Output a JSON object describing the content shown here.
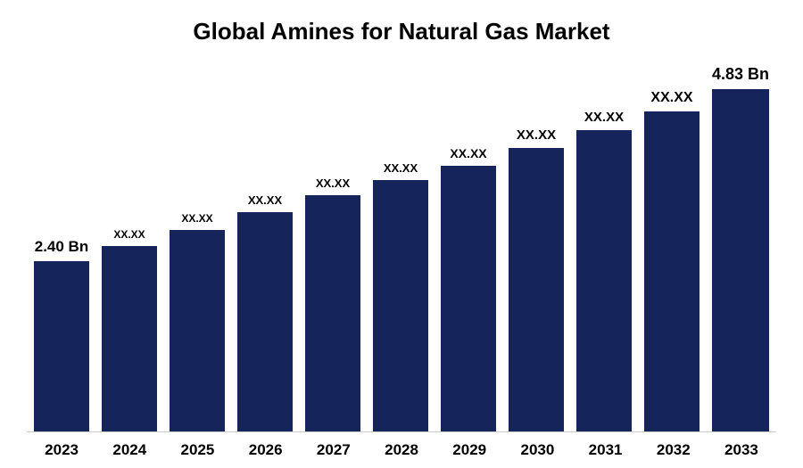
{
  "chart": {
    "type": "bar",
    "title": "Global Amines for Natural Gas Market",
    "title_fontsize": 26,
    "title_color": "#000000",
    "bar_color": "#15245b",
    "background_color": "#ffffff",
    "axis_line_color": "#cccccc",
    "x_tick_fontsize": 17,
    "x_tick_fontweight": "700",
    "x_tick_color": "#000000",
    "value_label_color": "#000000",
    "value_label_fontweight": "700",
    "ylim": [
      0,
      5.2
    ],
    "bars": [
      {
        "year": "2023",
        "value": 2.4,
        "label": "2.40 Bn",
        "label_fontsize": 17
      },
      {
        "year": "2024",
        "value": 2.62,
        "label": "XX.XX",
        "label_fontsize": 12
      },
      {
        "year": "2025",
        "value": 2.84,
        "label": "XX.XX",
        "label_fontsize": 12
      },
      {
        "year": "2026",
        "value": 3.1,
        "label": "XX.XX",
        "label_fontsize": 13
      },
      {
        "year": "2027",
        "value": 3.34,
        "label": "XX.XX",
        "label_fontsize": 13
      },
      {
        "year": "2028",
        "value": 3.55,
        "label": "XX.XX",
        "label_fontsize": 13
      },
      {
        "year": "2029",
        "value": 3.75,
        "label": "XX.XX",
        "label_fontsize": 14
      },
      {
        "year": "2030",
        "value": 4.0,
        "label": "XX.XX",
        "label_fontsize": 15
      },
      {
        "year": "2031",
        "value": 4.25,
        "label": "XX.XX",
        "label_fontsize": 15
      },
      {
        "year": "2032",
        "value": 4.52,
        "label": "XX.XX",
        "label_fontsize": 16
      },
      {
        "year": "2033",
        "value": 4.83,
        "label": "4.83 Bn",
        "label_fontsize": 18
      }
    ]
  }
}
